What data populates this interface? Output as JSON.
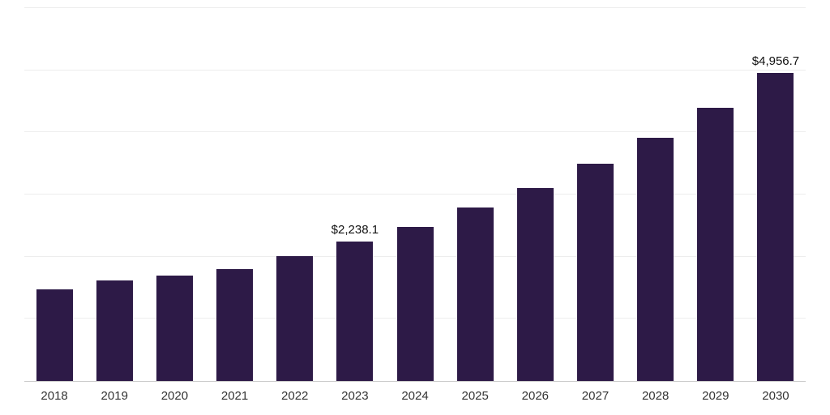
{
  "chart_data": {
    "type": "bar",
    "title": "",
    "xlabel": "",
    "ylabel": "",
    "categories": [
      "2018",
      "2019",
      "2020",
      "2021",
      "2022",
      "2023",
      "2024",
      "2025",
      "2026",
      "2027",
      "2028",
      "2029",
      "2030"
    ],
    "values": [
      1480,
      1620,
      1700,
      1800,
      2010,
      2238.1,
      2480,
      2790,
      3110,
      3490,
      3910,
      4400,
      4956.7
    ],
    "data_labels": [
      {
        "category": "2023",
        "text": "$2,238.1"
      },
      {
        "category": "2030",
        "text": "$4,956.7"
      }
    ],
    "ylim": [
      0,
      6000
    ],
    "grid_step": 1000,
    "grid": true,
    "legend": "none",
    "bar_color": "#2d1a47",
    "grid_color": "#ededed",
    "baseline_color": "#c9c9c9",
    "axis_text_color": "#333333",
    "label_text_color": "#111111"
  }
}
